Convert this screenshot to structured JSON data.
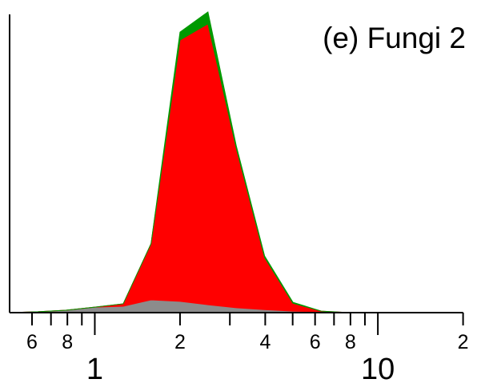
{
  "chart_data": {
    "type": "stacked-area",
    "title": "(e) Fungi 2",
    "x": [
      0.5,
      0.63,
      0.79,
      1,
      1.26,
      1.58,
      2,
      2.51,
      3.16,
      3.98,
      5.01,
      6.31,
      7.94,
      10,
      20
    ],
    "series": [
      {
        "color": "#8c8c8c",
        "values": [
          0,
          0.3,
          0.8,
          1.8,
          2.1,
          4.2,
          3.7,
          2.6,
          1.6,
          1.0,
          0.5,
          0.3,
          0,
          0,
          0
        ]
      },
      {
        "color": "#ff0000",
        "values": [
          0,
          0,
          0,
          0,
          0.8,
          18.4,
          85.8,
          92.2,
          52.4,
          17.1,
          2.6,
          0.2,
          0,
          0,
          0
        ]
      },
      {
        "color": "#009900",
        "values": [
          0,
          0,
          0,
          0,
          0,
          0,
          2.6,
          3.9,
          0.8,
          0.5,
          0.3,
          0,
          0,
          0,
          0
        ]
      }
    ],
    "xlog": true,
    "xlim": [
      0.5,
      20
    ],
    "ylim": [
      0,
      100
    ],
    "xticks": [
      {
        "value": 0.6,
        "label": "6"
      },
      {
        "value": 0.8,
        "label": "8"
      },
      1,
      2,
      4,
      6,
      8,
      10,
      {
        "value": 20,
        "label": "2"
      }
    ],
    "xminorticks": [
      0.7,
      0.9,
      3,
      5,
      7,
      9
    ]
  }
}
